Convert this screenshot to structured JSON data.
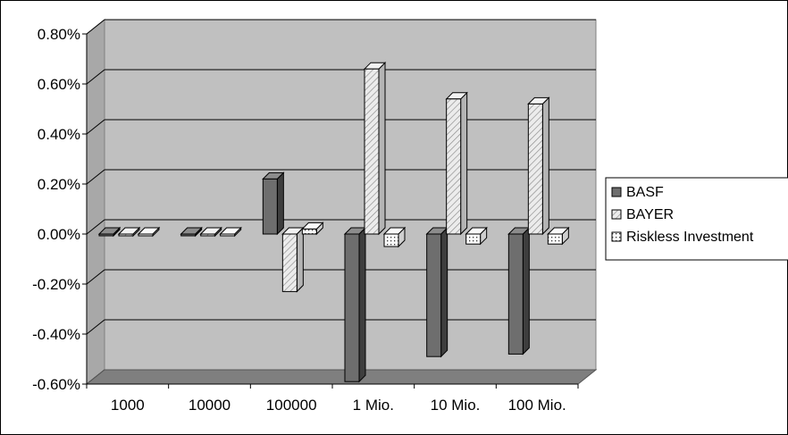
{
  "chart_data": {
    "type": "bar",
    "title": "",
    "xlabel": "",
    "ylabel": "",
    "categories": [
      "1000",
      "10000",
      "100000",
      "1 Mio.",
      "10 Mio.",
      "100 Mio."
    ],
    "series": [
      {
        "name": "BASF",
        "values": [
          0.0,
          0.0,
          0.22,
          -0.59,
          -0.49,
          -0.48
        ],
        "color": "#6e6e6e",
        "pattern": "solid-dark"
      },
      {
        "name": "BAYER",
        "values": [
          0.0,
          0.0,
          -0.23,
          0.66,
          0.54,
          0.52
        ],
        "color": "#e4e4e4",
        "pattern": "diagonal-hatch"
      },
      {
        "name": "Riskless Investment",
        "values": [
          0.0,
          0.0,
          0.02,
          -0.05,
          -0.04,
          -0.04
        ],
        "color": "#f4f4f4",
        "pattern": "dotted"
      }
    ],
    "ylim": [
      -0.6,
      0.8
    ],
    "yticks": [
      -0.6,
      -0.4,
      -0.2,
      0.0,
      0.2,
      0.4,
      0.6,
      0.8
    ],
    "ytick_labels": [
      "-0.60%",
      "-0.40%",
      "-0.20%",
      "0.00%",
      "0.20%",
      "0.40%",
      "0.60%",
      "0.80%"
    ],
    "y_unit": "%",
    "grid": true,
    "legend_position": "right",
    "style": "3d-column",
    "colors": {
      "wall": "#c0c0c0",
      "floor": "#7f7f7f"
    }
  }
}
